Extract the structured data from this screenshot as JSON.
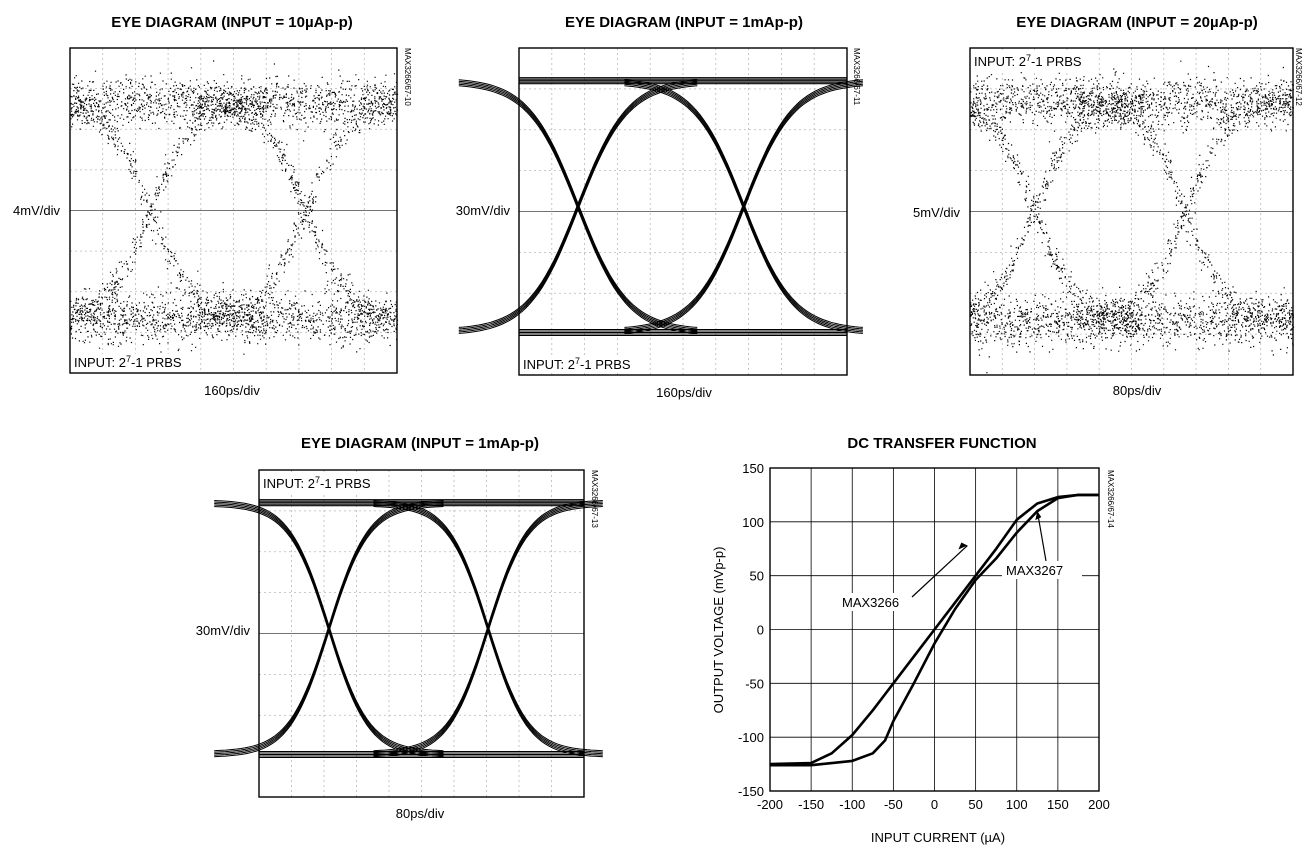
{
  "chart_data": [
    {
      "type": "eye_diagram",
      "title": "EYE DIAGRAM (INPUT = 10µAp-p)",
      "ylabel": "4mV/div",
      "xlabel": "160ps/div",
      "note": "INPUT: 2",
      "note_sup": "7",
      "note_tail": "-1 PRBS",
      "code": "MAX3266/67-10",
      "noise": "high"
    },
    {
      "type": "eye_diagram",
      "title": "EYE DIAGRAM (INPUT = 1mAp-p)",
      "ylabel": "30mV/div",
      "xlabel": "160ps/div",
      "note": "INPUT: 2",
      "note_sup": "7",
      "note_tail": "-1 PRBS",
      "code": "MAX3266/67-11",
      "noise": "low"
    },
    {
      "type": "eye_diagram",
      "title": "EYE DIAGRAM (INPUT = 20µAp-p)",
      "ylabel": "5mV/div",
      "xlabel": "80ps/div",
      "note": "INPUT: 2",
      "note_sup": "7",
      "note_tail": "-1 PRBS",
      "code": "MAX3266/67-12",
      "noise": "high"
    },
    {
      "type": "eye_diagram",
      "title": "EYE DIAGRAM (INPUT = 1mAp-p)",
      "ylabel": "30mV/div",
      "xlabel": "80ps/div",
      "note": "INPUT: 2",
      "note_sup": "7",
      "note_tail": "-1 PRBS",
      "code": "MAX3266/67-13",
      "noise": "low"
    },
    {
      "type": "line",
      "title": "DC TRANSFER FUNCTION",
      "xlabel": "INPUT CURRENT (µA)",
      "ylabel": "OUTPUT VOLTAGE (mVp-p)",
      "code": "MAX3266/67-14",
      "xlim": [
        -200,
        200
      ],
      "ylim": [
        -150,
        150
      ],
      "xticks": [
        -200,
        -150,
        -100,
        -50,
        0,
        50,
        100,
        150,
        200
      ],
      "yticks": [
        150,
        100,
        50,
        0,
        -50,
        -100,
        -150
      ],
      "grid": true,
      "series": [
        {
          "name": "MAX3266",
          "x": [
            -200,
            -150,
            -125,
            -100,
            -75,
            -50,
            -25,
            0,
            25,
            50,
            75,
            100,
            125,
            150,
            175,
            200
          ],
          "y": [
            -125,
            -124,
            -115,
            -98,
            -75,
            -50,
            -25,
            0,
            25,
            50,
            75,
            102,
            117,
            123,
            125,
            125
          ]
        },
        {
          "name": "MAX3267",
          "x": [
            -200,
            -150,
            -100,
            -75,
            -60,
            -50,
            -25,
            0,
            25,
            50,
            75,
            100,
            125,
            150,
            175,
            200
          ],
          "y": [
            -126,
            -126,
            -122,
            -115,
            -103,
            -85,
            -50,
            -13,
            19,
            46,
            66,
            90,
            110,
            122,
            125,
            125
          ]
        }
      ]
    }
  ]
}
